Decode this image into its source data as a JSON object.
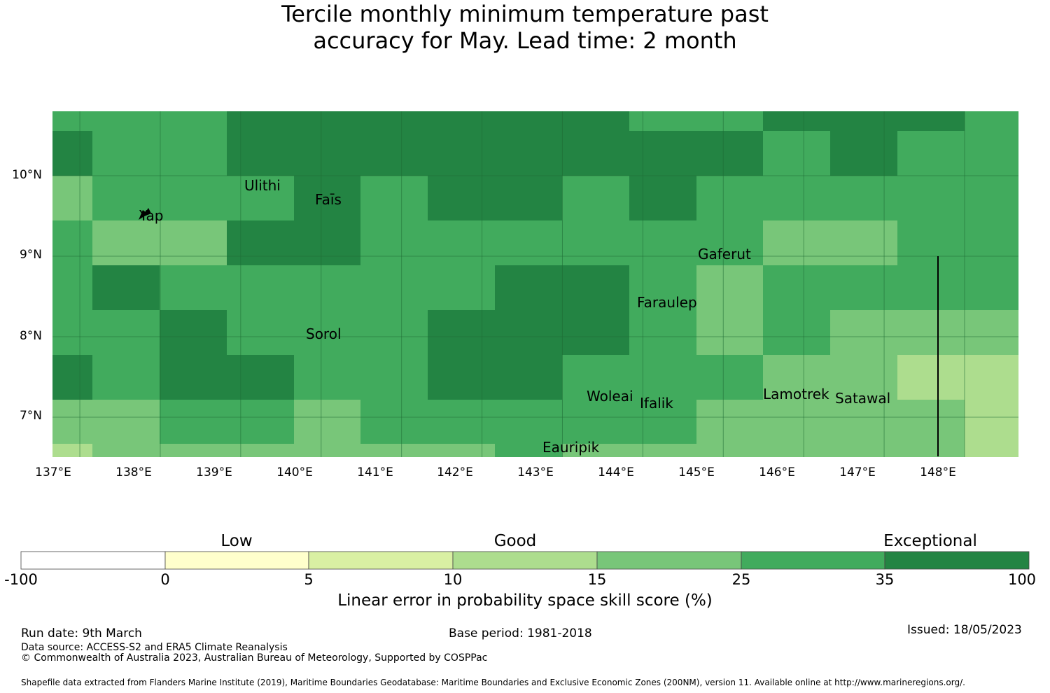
{
  "title_line1": "Tercile monthly minimum temperature past",
  "title_line2": "accuracy for May. Lead time: 2 month",
  "map": {
    "lat_labels": [
      "10°N",
      "9°N",
      "8°N",
      "7°N"
    ],
    "lat_values": [
      10,
      9,
      8,
      7
    ],
    "lon_labels": [
      "137°E",
      "138°E",
      "139°E",
      "140°E",
      "141°E",
      "142°E",
      "143°E",
      "144°E",
      "145°E",
      "146°E",
      "147°E",
      "148°E"
    ],
    "lon_values": [
      137,
      138,
      139,
      140,
      141,
      142,
      143,
      144,
      145,
      146,
      147,
      148
    ],
    "places": [
      {
        "name": "Ulithi",
        "lon": 139.4,
        "lat": 9.85
      },
      {
        "name": "Faīs",
        "lon": 140.26,
        "lat": 9.67
      },
      {
        "name": "Yap",
        "lon": 138.08,
        "lat": 9.5
      },
      {
        "name": "Gaferut",
        "lon": 145.02,
        "lat": 9.0
      },
      {
        "name": "Faraulep",
        "lon": 144.26,
        "lat": 8.42
      },
      {
        "name": "Sorol",
        "lon": 140.15,
        "lat": 8.02
      },
      {
        "name": "Woleai",
        "lon": 143.67,
        "lat": 7.27
      },
      {
        "name": "Ifalik",
        "lon": 144.3,
        "lat": 7.18
      },
      {
        "name": "Lamotrek",
        "lon": 145.83,
        "lat": 7.29
      },
      {
        "name": "Satawal",
        "lon": 146.7,
        "lat": 7.25
      },
      {
        "name": "Eauripik",
        "lon": 142.88,
        "lat": 6.6
      }
    ]
  },
  "colorbar": {
    "categories": [
      "Low",
      "Good",
      "Exceptional"
    ],
    "tick_labels": [
      "-100",
      "0",
      "5",
      "10",
      "15",
      "25",
      "35",
      "100"
    ],
    "colors": [
      "#ffffff",
      "#ffffcc",
      "#d9f0a3",
      "#addd8e",
      "#78c679",
      "#41ab5d",
      "#238443"
    ],
    "title": "Linear error in probability space skill score (%)"
  },
  "footer": {
    "run_date": "Run date: 9th March",
    "base_period": "Base period: 1981-2018",
    "issued": "Issued: 18/05/2023",
    "data_source": "Data source: ACCESS-S2 and ERA5 Climate Reanalysis",
    "copyright": "© Commonwealth of Australia 2023, Australian Bureau of Meteorology, Supported by COSPPac",
    "shapefile": "Shapefile data extracted from Flanders Marine Institute (2019), Maritime Boundaries Geodatabase: Maritime Boundaries and Exclusive Economic Zones (200NM), version 11. Available online at http://www.marineregions.org/."
  }
}
